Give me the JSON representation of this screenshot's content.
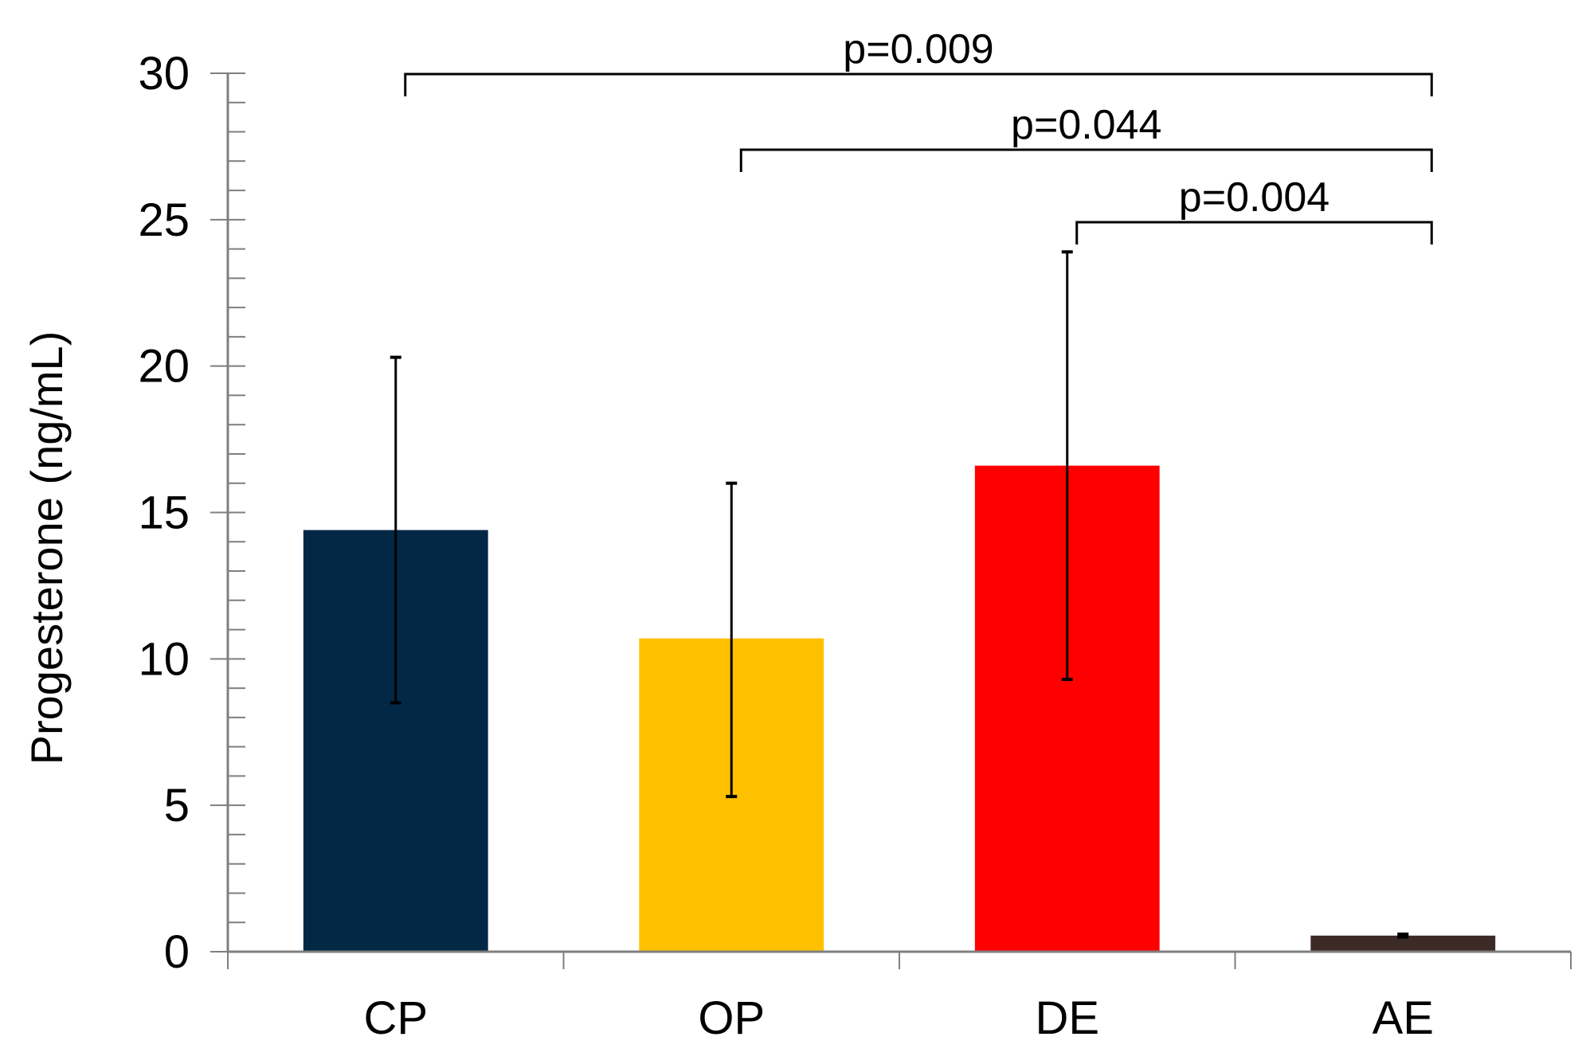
{
  "chart_data": {
    "type": "bar",
    "title": "",
    "xlabel": "",
    "ylabel": "Progesterone (ng/mL)",
    "ylim": [
      0,
      30
    ],
    "yticks": [
      0,
      5,
      10,
      15,
      20,
      25,
      30
    ],
    "yminor_step": 1,
    "grid": false,
    "legend": "none",
    "categories": [
      "CP",
      "OP",
      "DE",
      "AE"
    ],
    "values": [
      14.4,
      10.7,
      16.6,
      0.55
    ],
    "error_low": [
      8.5,
      5.3,
      9.3,
      0.5
    ],
    "error_high": [
      20.3,
      16.0,
      23.9,
      0.6
    ],
    "colors": [
      "#022845",
      "#ffc000",
      "#ff0000",
      "#3c2a26"
    ],
    "significance": [
      {
        "from": "CP",
        "to": "AE",
        "label": "p=0.009"
      },
      {
        "from": "OP",
        "to": "AE",
        "label": "p=0.044"
      },
      {
        "from": "DE",
        "to": "AE",
        "label": "p=0.004"
      }
    ]
  }
}
